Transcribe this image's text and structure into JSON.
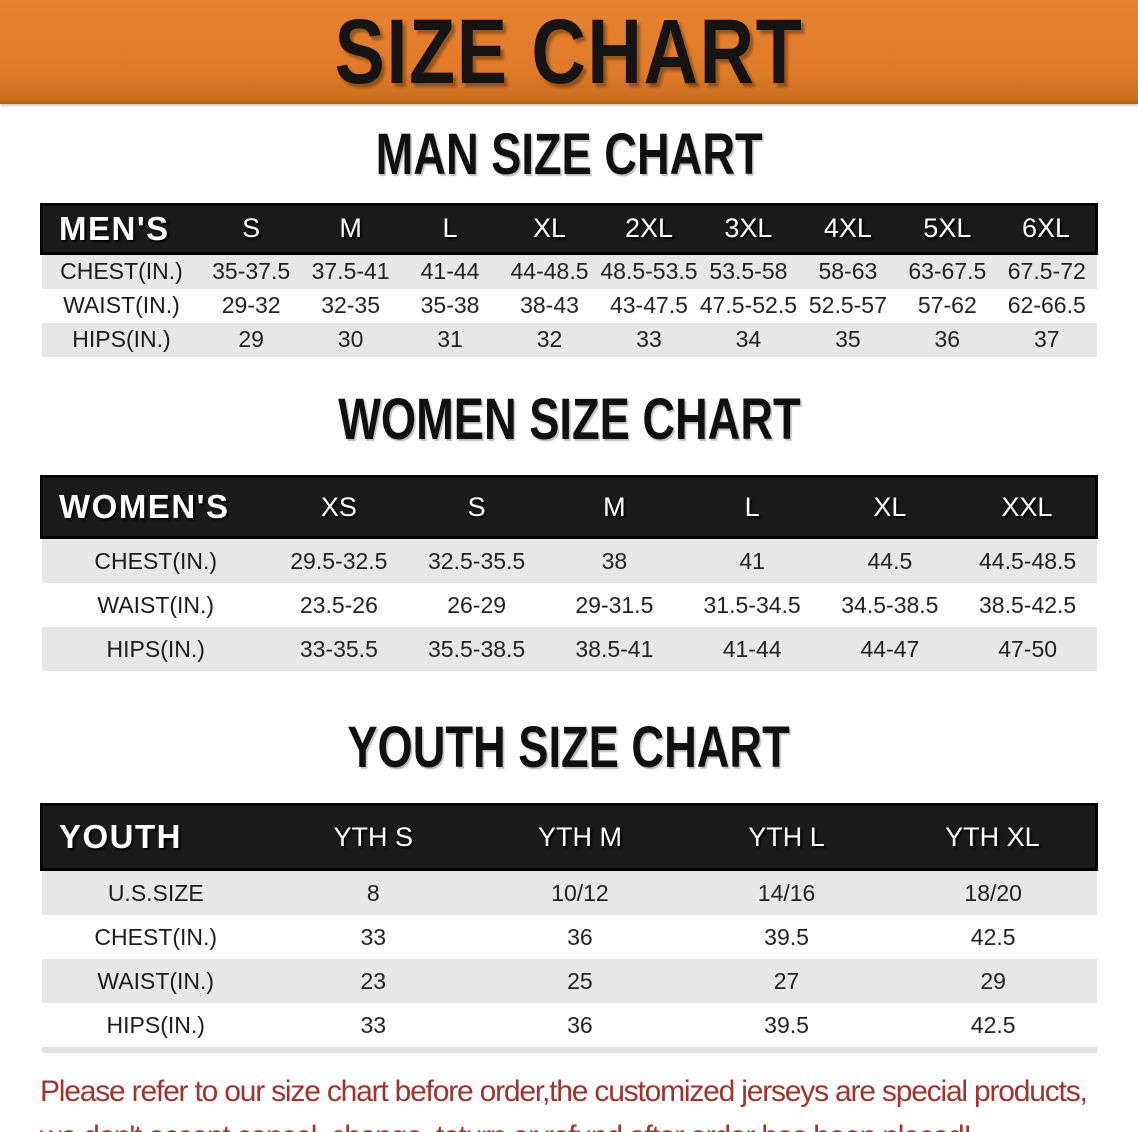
{
  "banner": {
    "title": "SIZE CHART",
    "bg_color": "#df7a28",
    "text_color": "#141414"
  },
  "sections": [
    {
      "heading": "MAN SIZE CHART",
      "table": {
        "category_label": "MEN'S",
        "columns": [
          "S",
          "M",
          "L",
          "XL",
          "2XL",
          "3XL",
          "4XL",
          "5XL",
          "6XL"
        ],
        "rows": [
          {
            "label": "CHEST(IN.)",
            "values": [
              "35-37.5",
              "37.5-41",
              "41-44",
              "44-48.5",
              "48.5-53.5",
              "53.5-58",
              "58-63",
              "63-67.5",
              "67.5-72"
            ]
          },
          {
            "label": "WAIST(IN.)",
            "values": [
              "29-32",
              "32-35",
              "35-38",
              "38-43",
              "43-47.5",
              "47.5-52.5",
              "52.5-57",
              "57-62",
              "62-66.5"
            ]
          },
          {
            "label": "HIPS(IN.)",
            "values": [
              "29",
              "30",
              "31",
              "32",
              "33",
              "34",
              "35",
              "36",
              "37"
            ]
          }
        ]
      }
    },
    {
      "heading": "WOMEN SIZE CHART",
      "table": {
        "category_label": "WOMEN'S",
        "columns": [
          "XS",
          "S",
          "M",
          "L",
          "XL",
          "XXL"
        ],
        "rows": [
          {
            "label": "CHEST(IN.)",
            "values": [
              "29.5-32.5",
              "32.5-35.5",
              "38",
              "41",
              "44.5",
              "44.5-48.5"
            ]
          },
          {
            "label": "WAIST(IN.)",
            "values": [
              "23.5-26",
              "26-29",
              "29-31.5",
              "31.5-34.5",
              "34.5-38.5",
              "38.5-42.5"
            ]
          },
          {
            "label": "HIPS(IN.)",
            "values": [
              "33-35.5",
              "35.5-38.5",
              "38.5-41",
              "41-44",
              "44-47",
              "47-50"
            ]
          }
        ]
      }
    },
    {
      "heading": "YOUTH SIZE CHART",
      "table": {
        "category_label": "YOUTH",
        "columns": [
          "YTH S",
          "YTH M",
          "YTH L",
          "YTH XL"
        ],
        "rows": [
          {
            "label": "U.S.SIZE",
            "values": [
              "8",
              "10/12",
              "14/16",
              "18/20"
            ]
          },
          {
            "label": "CHEST(IN.)",
            "values": [
              "33",
              "36",
              "39.5",
              "42.5"
            ]
          },
          {
            "label": "WAIST(IN.)",
            "values": [
              "23",
              "25",
              "27",
              "29"
            ]
          },
          {
            "label": "HIPS(IN.)",
            "values": [
              "33",
              "36",
              "39.5",
              "42.5"
            ]
          }
        ]
      }
    }
  ],
  "disclaimer": {
    "line1": "Please refer to our size chart before order,the customized jerseys are special products,",
    "line2": "we don't accept cancel, change, teturn or refund after order has been placed!",
    "color": "#a3332a"
  },
  "colors": {
    "banner_orange": "#df7a28",
    "header_bar_black": "#1b1b1b",
    "row_gray": "#e7e7e7",
    "row_white": "#ffffff",
    "disclaimer_red": "#a3332a"
  }
}
